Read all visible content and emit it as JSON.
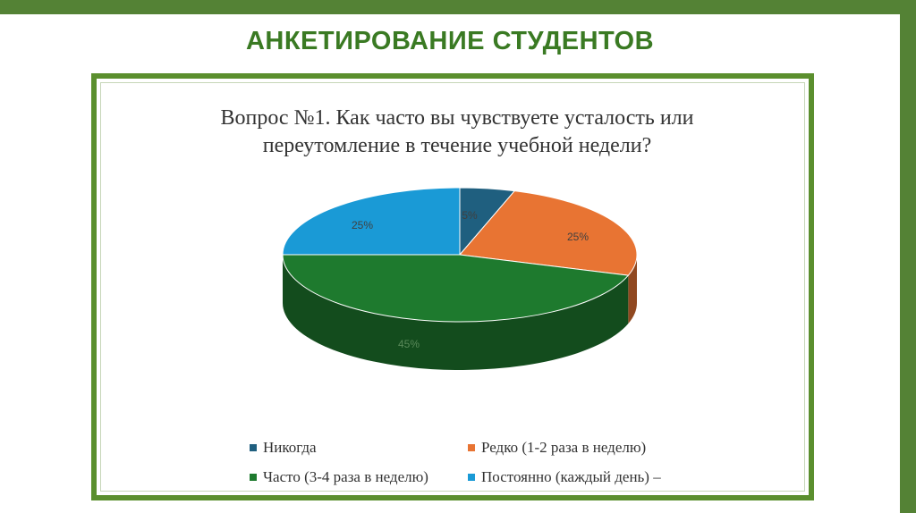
{
  "slide": {
    "title": "АНКЕТИРОВАНИЕ СТУДЕНТОВ"
  },
  "colors": {
    "frame": "#548235",
    "title": "#3a7a23",
    "chart_border": "#5b8f2e"
  },
  "chart_data": {
    "type": "pie",
    "title_lines": [
      "Вопрос №1. Как часто вы чувствуете усталость или",
      "переутомление в течение учебной недели?"
    ],
    "style": "3d",
    "legend_position": "bottom",
    "slices": [
      {
        "label": "Никогда",
        "value": 5,
        "display": "5%",
        "color": "#1f5f7f"
      },
      {
        "label": "Редко (1-2 раза в неделю)",
        "value": 25,
        "display": "25%",
        "color": "#e87433"
      },
      {
        "label": "Часто (3-4 раза в неделю)",
        "value": 45,
        "display": "45%",
        "color": "#1e7a2e"
      },
      {
        "label": "Постоянно (каждый день) –",
        "value": 25,
        "display": "25%",
        "color": "#1a9ad6"
      }
    ]
  }
}
